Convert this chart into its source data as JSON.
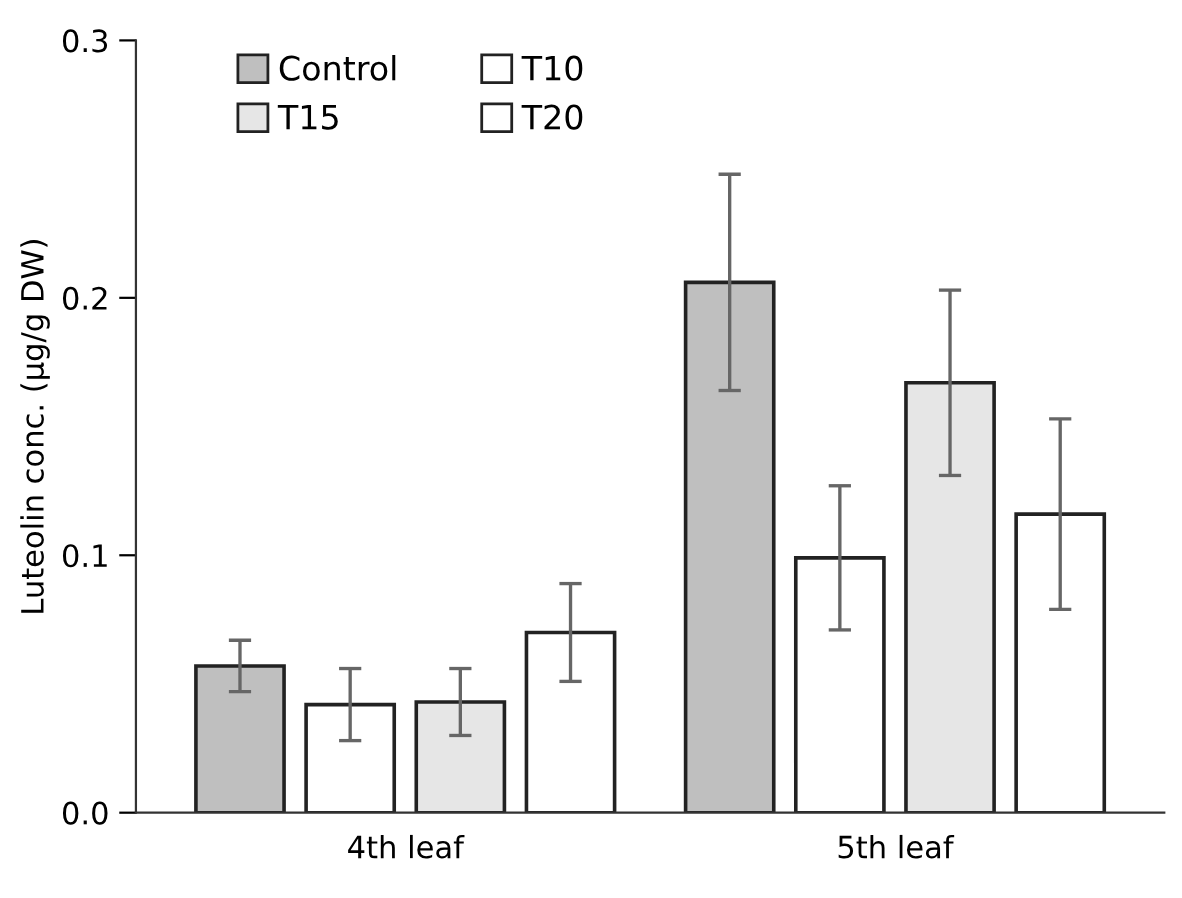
{
  "chart_data": {
    "type": "bar",
    "ylabel": "Luteolin conc. (µg/g DW)",
    "categories": [
      "4th leaf",
      "5th leaf"
    ],
    "series": [
      {
        "name": "Control",
        "color": "#bfbfbf",
        "values": [
          0.057,
          0.206
        ],
        "errors": [
          0.01,
          0.042
        ]
      },
      {
        "name": "T10",
        "color": "#ffffff",
        "values": [
          0.042,
          0.099
        ],
        "errors": [
          0.014,
          0.028
        ]
      },
      {
        "name": "T15",
        "color": "#e6e6e6",
        "values": [
          0.043,
          0.167
        ],
        "errors": [
          0.013,
          0.036
        ]
      },
      {
        "name": "T20",
        "color": "#ffffff",
        "values": [
          0.07,
          0.116
        ],
        "errors": [
          0.019,
          0.037
        ]
      }
    ],
    "ylim": [
      0,
      0.3
    ],
    "yticks": [
      {
        "value": 0,
        "label": "0.0"
      },
      0.1,
      0.2,
      0.3
    ],
    "grid": false,
    "legend": "top left"
  }
}
